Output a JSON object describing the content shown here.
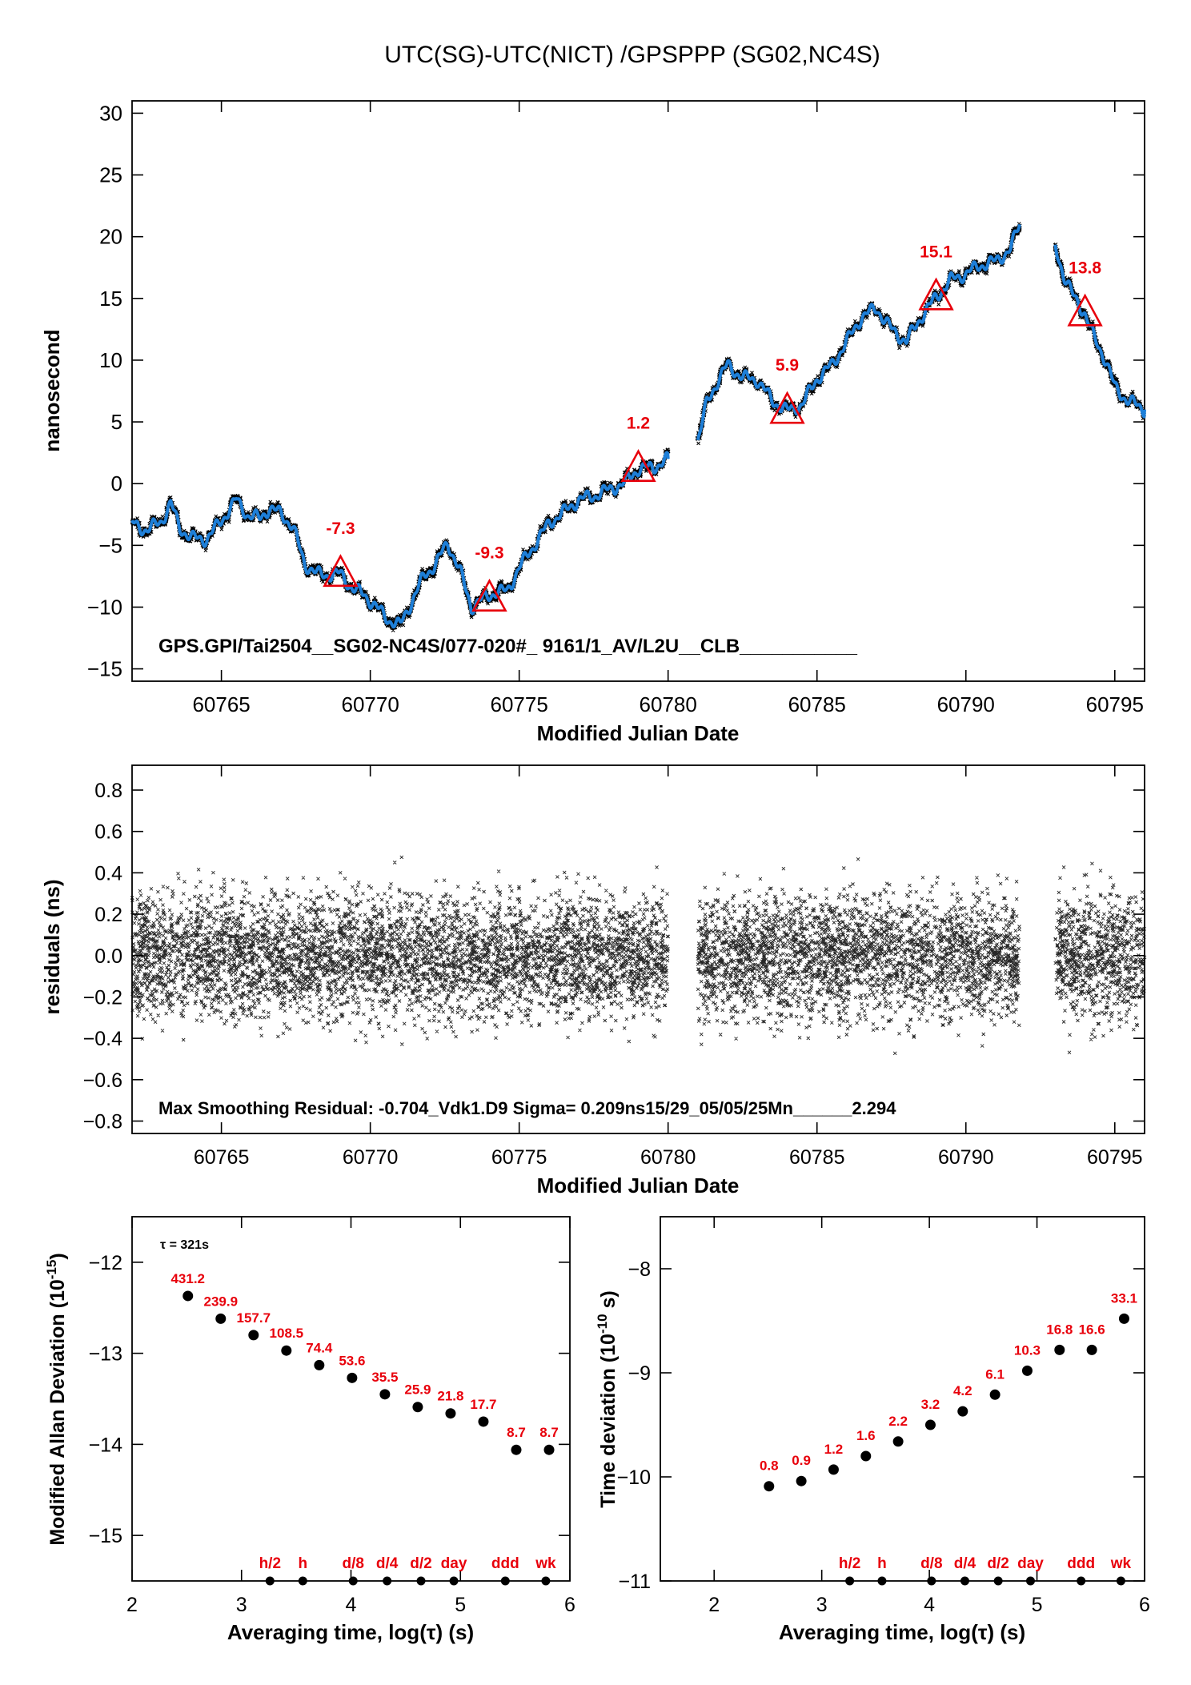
{
  "page_title": "UTC(SG)-UTC(NICT)  /GPSPPP  (SG02,NC4S)",
  "chart_data": [
    {
      "type": "line",
      "id": "offset",
      "xlabel": "Modified Julian Date",
      "ylabel": "nanosecond",
      "xlim": [
        60762,
        60796
      ],
      "ylim": [
        -16,
        31
      ],
      "xticks": [
        60765,
        60770,
        60775,
        60780,
        60785,
        60790,
        60795
      ],
      "yticks": [
        -15,
        -10,
        -5,
        0,
        5,
        10,
        15,
        20,
        25,
        30
      ],
      "annotation": "GPS.GPI/Tai2504__SG02-NC4S/077-020#_  9161/1_AV/L2U__CLB___________",
      "colors": {
        "raw": "#000000",
        "smoothed": "#1e7fd8",
        "marker": "#e8000b"
      },
      "series": [
        {
          "x": [
            60762.0,
            60762.5,
            60763.0,
            60763.3,
            60763.6,
            60764.0,
            60764.5,
            60765.0,
            60765.5,
            60765.9,
            60766.3,
            60766.6,
            60767.0,
            60767.4,
            60767.8,
            60768.2,
            60768.6,
            60769.0,
            60769.4,
            60769.8,
            60770.2,
            60770.6,
            60771.0,
            60771.4,
            60771.8,
            60772.2,
            60772.6,
            60773.0,
            60773.4,
            60773.8,
            60774.2,
            60774.6,
            60775.0,
            60775.5,
            60776.0,
            60776.5,
            60777.0,
            60777.5,
            60778.0,
            60778.5,
            60779.0,
            60779.5,
            60780.0
          ],
          "values": [
            -3.2,
            -3.8,
            -3.0,
            -1.6,
            -3.6,
            -4.4,
            -4.5,
            -3.0,
            -1.3,
            -2.6,
            -2.8,
            -2.0,
            -2.4,
            -3.5,
            -6.5,
            -7.3,
            -7.4,
            -7.3,
            -8.5,
            -9.0,
            -10.0,
            -11.0,
            -11.5,
            -9.5,
            -7.5,
            -6.5,
            -4.8,
            -7.0,
            -10.0,
            -9.3,
            -8.8,
            -8.7,
            -6.8,
            -5.0,
            -3.2,
            -2.3,
            -1.3,
            -1.0,
            -0.5,
            0.0,
            1.2,
            1.3,
            2.0
          ]
        },
        {
          "x": [
            60781.0,
            60781.3,
            60781.7,
            60782.0,
            60782.5,
            60783.0,
            60783.5,
            60784.0,
            60784.5,
            60785.0,
            60785.5,
            60786.0,
            60786.5,
            60787.0,
            60787.5,
            60788.0,
            60788.5,
            60789.0,
            60789.5,
            60790.0,
            60790.5,
            60791.0,
            60791.5,
            60791.8
          ],
          "values": [
            3.5,
            6.5,
            8.5,
            9.6,
            8.6,
            8.4,
            6.7,
            5.9,
            6.4,
            8.5,
            9.6,
            11.5,
            13.5,
            14.2,
            12.5,
            11.5,
            13.5,
            15.1,
            16.5,
            17.0,
            17.7,
            18.0,
            19.0,
            21.0
          ]
        },
        {
          "x": [
            60793.0,
            60793.3,
            60793.6,
            60794.0,
            60794.3,
            60794.7,
            60795.0,
            60795.4,
            60796.0
          ],
          "values": [
            19.2,
            16.8,
            15.2,
            13.8,
            11.8,
            10.0,
            7.8,
            6.8,
            6.0
          ]
        }
      ],
      "markers": [
        {
          "x": 60769,
          "y": -7.3,
          "label": "-7.3"
        },
        {
          "x": 60774,
          "y": -9.3,
          "label": "-9.3"
        },
        {
          "x": 60779,
          "y": 1.2,
          "label": "1.2"
        },
        {
          "x": 60784,
          "y": 5.9,
          "label": "5.9"
        },
        {
          "x": 60789,
          "y": 15.1,
          "label": "15.1"
        },
        {
          "x": 60794,
          "y": 13.8,
          "label": "13.8"
        }
      ]
    },
    {
      "type": "scatter",
      "id": "residuals",
      "xlabel": "Modified Julian Date",
      "ylabel": "residuals (ns)",
      "xlim": [
        60762,
        60796
      ],
      "ylim": [
        -0.86,
        0.92
      ],
      "xticks": [
        60765,
        60770,
        60775,
        60780,
        60785,
        60790,
        60795
      ],
      "yticks": [
        -0.8,
        -0.6,
        -0.4,
        -0.2,
        0.0,
        0.2,
        0.4,
        0.6,
        0.8
      ],
      "ytick_labels": [
        "−0.8",
        "−0.6",
        "−0.4",
        "−0.2",
        "0.0",
        "0.2",
        "0.4",
        "0.6",
        "0.8"
      ],
      "sigma_ns": 0.209,
      "data_ranges": [
        [
          60762.0,
          60780.0
        ],
        [
          60781.0,
          60791.8
        ],
        [
          60793.0,
          60796.0
        ]
      ],
      "annotation": "Max Smoothing Residual: -0.704_Vdk1.D9  Sigma= 0.209ns15/29_05/05/25Mn______2.294"
    },
    {
      "type": "scatter",
      "id": "mdev",
      "xlabel": "Averaging time, log(τ) (s)",
      "ylabel_main": "Modified Allan Deviation (10",
      "ylabel_sup": "-15",
      "ylabel_end": ")",
      "xlim": [
        2,
        6
      ],
      "ylim": [
        -15.5,
        -11.5
      ],
      "xticks": [
        2,
        3,
        4,
        5,
        6
      ],
      "yticks": [
        -15,
        -14,
        -13,
        -12
      ],
      "tau_note": "τ = 321s",
      "x": [
        2.51,
        2.81,
        3.11,
        3.41,
        3.71,
        4.01,
        4.31,
        4.61,
        4.91,
        5.21,
        5.51,
        5.81
      ],
      "values": [
        -12.37,
        -12.62,
        -12.8,
        -12.97,
        -13.13,
        -13.27,
        -13.45,
        -13.59,
        -13.66,
        -13.75,
        -14.06,
        -14.06
      ],
      "point_labels": [
        "431.2",
        "239.9",
        "157.7",
        "108.5",
        "74.4",
        "53.6",
        "35.5",
        "25.9",
        "21.8",
        "17.7",
        "8.7",
        "8.7"
      ],
      "reference_marks": [
        {
          "x": 3.26,
          "label": "h/2"
        },
        {
          "x": 3.56,
          "label": "h"
        },
        {
          "x": 4.02,
          "label": "d/8"
        },
        {
          "x": 4.33,
          "label": "d/4"
        },
        {
          "x": 4.64,
          "label": "d/2"
        },
        {
          "x": 4.94,
          "label": "day"
        },
        {
          "x": 5.41,
          "label": "ddd"
        },
        {
          "x": 5.78,
          "label": "wk"
        }
      ]
    },
    {
      "type": "scatter",
      "id": "tdev",
      "xlabel": "Averaging time, log(τ) (s)",
      "ylabel_main": "Time deviation (10",
      "ylabel_sup": "-10",
      "ylabel_end": " s)",
      "xlim": [
        1.5,
        6
      ],
      "ylim": [
        -11,
        -7.5
      ],
      "xticks": [
        2,
        3,
        4,
        5,
        6
      ],
      "yticks": [
        -11,
        -10,
        -9,
        -8
      ],
      "x": [
        2.51,
        2.81,
        3.11,
        3.41,
        3.71,
        4.01,
        4.31,
        4.61,
        4.91,
        5.21,
        5.51,
        5.81
      ],
      "values": [
        -10.09,
        -10.04,
        -9.93,
        -9.8,
        -9.66,
        -9.5,
        -9.37,
        -9.21,
        -8.98,
        -8.78,
        -8.78,
        -8.48
      ],
      "point_labels": [
        "0.8",
        "0.9",
        "1.2",
        "1.6",
        "2.2",
        "3.2",
        "4.2",
        "6.1",
        "10.3",
        "16.8",
        "16.6",
        "33.1"
      ],
      "reference_marks": [
        {
          "x": 3.26,
          "label": "h/2"
        },
        {
          "x": 3.56,
          "label": "h"
        },
        {
          "x": 4.02,
          "label": "d/8"
        },
        {
          "x": 4.33,
          "label": "d/4"
        },
        {
          "x": 4.64,
          "label": "d/2"
        },
        {
          "x": 4.94,
          "label": "day"
        },
        {
          "x": 5.41,
          "label": "ddd"
        },
        {
          "x": 5.78,
          "label": "wk"
        }
      ]
    }
  ]
}
